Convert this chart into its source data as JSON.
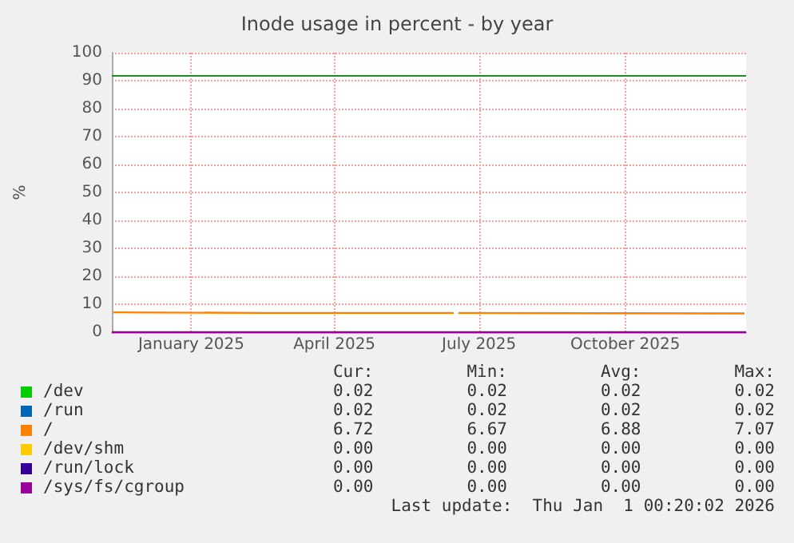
{
  "chart_data": {
    "type": "line",
    "title": "Inode usage in percent - by year",
    "ylabel": "%",
    "xlim": [
      "2024-11-27",
      "2025-12-31"
    ],
    "xticks": [
      {
        "value": "2025-01-16",
        "label": "January 2025"
      },
      {
        "value": "2025-04-16",
        "label": "April 2025"
      },
      {
        "value": "2025-07-16",
        "label": "July 2025"
      },
      {
        "value": "2025-10-16",
        "label": "October 2025"
      }
    ],
    "ylim": [
      0,
      100
    ],
    "yticks": [
      0,
      10,
      20,
      30,
      40,
      50,
      60,
      70,
      80,
      90,
      100
    ],
    "grid": true,
    "legend": "bottom",
    "marker": "none",
    "line_style": "solid",
    "ref_lines": [
      {
        "axis": "y",
        "value": 92,
        "color": "#228b22"
      }
    ],
    "series": [
      {
        "name": "/dev",
        "color": "#00cc00"
      },
      {
        "name": "/run",
        "color": "#0066b3"
      },
      {
        "name": "/",
        "color": "#ff8000",
        "x": [
          "2024-11-28",
          "2025-03-01",
          "2025-06-30",
          "2025-07-01",
          "2025-07-03",
          "2025-10-01",
          "2025-12-30"
        ],
        "values": [
          7.1,
          6.9,
          6.9,
          null,
          6.9,
          6.8,
          6.7
        ]
      },
      {
        "name": "/dev/shm",
        "color": "#ffcc00"
      },
      {
        "name": "/run/lock",
        "color": "#330099"
      },
      {
        "name": "/sys/fs/cgroup",
        "color": "#990099",
        "x": [
          "2024-11-27",
          "2025-12-31"
        ],
        "values": [
          0,
          0
        ]
      }
    ],
    "annotations": [
      "Cur:",
      "Min:",
      "Avg:",
      "Max:",
      "0.02",
      "0.02",
      "0.02",
      "0.02",
      "0.02",
      "0.02",
      "0.02",
      "0.02",
      "6.72",
      "6.67",
      "6.88",
      "7.07",
      "0.00",
      "0.00",
      "0.00",
      "0.00",
      "0.00",
      "0.00",
      "0.00",
      "0.00",
      "0.00",
      "0.00",
      "0.00",
      "0.00",
      "Last update:  Thu Jan  1 00:20:02 2026"
    ]
  }
}
